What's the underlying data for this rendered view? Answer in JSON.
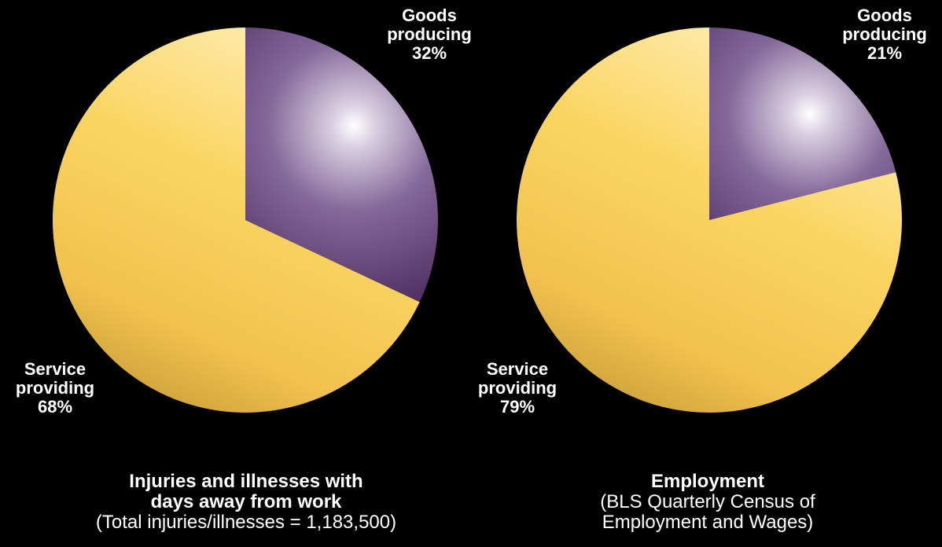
{
  "colors": {
    "background": "#000000",
    "goods": "#6b4a7a",
    "goods_highlight": "#ffffff",
    "goods_dark": "#4a2a56",
    "service": "#f5c94f",
    "service_highlight": "#fde9a6",
    "service_dark": "#c59a36",
    "text": "#ffffff"
  },
  "chart_data": [
    {
      "type": "pie",
      "title_lines": [
        "Injuries and illnesses with",
        "days away from work"
      ],
      "subtitle": "(Total injuries/illnesses = 1,183,500)",
      "slices": [
        {
          "label_lines": [
            "Goods",
            "producing"
          ],
          "value": 32,
          "value_label": "32%"
        },
        {
          "label_lines": [
            "Service",
            "providing"
          ],
          "value": 68,
          "value_label": "68%"
        }
      ]
    },
    {
      "type": "pie",
      "title_lines": [
        "Employment"
      ],
      "subtitle_lines": [
        "(BLS Quarterly Census of",
        "Employment and Wages)"
      ],
      "slices": [
        {
          "label_lines": [
            "Goods",
            "producing"
          ],
          "value": 21,
          "value_label": "21%"
        },
        {
          "label_lines": [
            "Service",
            "providing"
          ],
          "value": 79,
          "value_label": "79%"
        }
      ]
    }
  ]
}
